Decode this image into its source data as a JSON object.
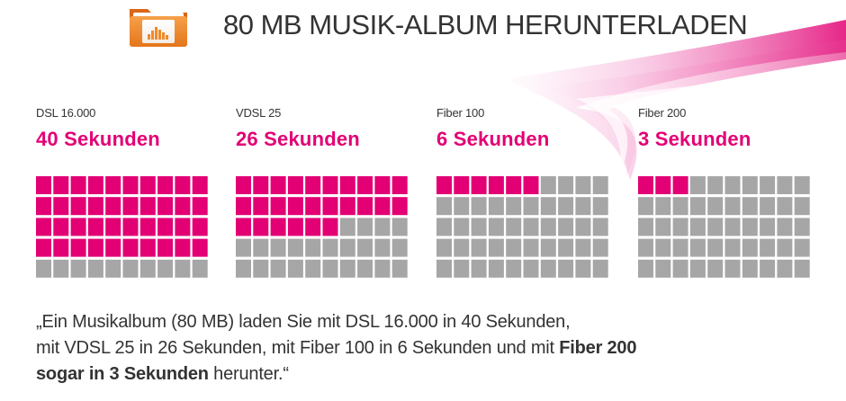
{
  "header": {
    "title": "80 MB MUSIK-ALBUM HERUNTERLADEN",
    "icon": "music-folder-icon"
  },
  "colors": {
    "accent": "#e20074",
    "inactive": "#a6a6a6",
    "text": "#333333",
    "swoosh": "#f4a3d2"
  },
  "chart_data": {
    "type": "waffle",
    "grid": {
      "rows": 5,
      "cols": 10
    },
    "panels": [
      {
        "label": "DSL 16.000",
        "time": "40 Sekunden",
        "seconds": 40
      },
      {
        "label": "VDSL 25",
        "time": "26 Sekunden",
        "seconds": 26
      },
      {
        "label": "Fiber 100",
        "time": "6 Sekunden",
        "seconds": 6
      },
      {
        "label": "Fiber 200",
        "time": "3 Sekunden",
        "seconds": 3
      }
    ]
  },
  "quote": {
    "line1": "„Ein Musikalbum (80 MB) laden Sie mit DSL 16.000 in 40 Sekunden,",
    "line2": "mit VDSL 25 in 26 Sekunden, mit Fiber 100 in 6 Sekunden und mit ",
    "line2_bold": "Fiber 200",
    "line3_bold": "sogar in 3 Sekunden",
    "line3": " herunter.“"
  }
}
